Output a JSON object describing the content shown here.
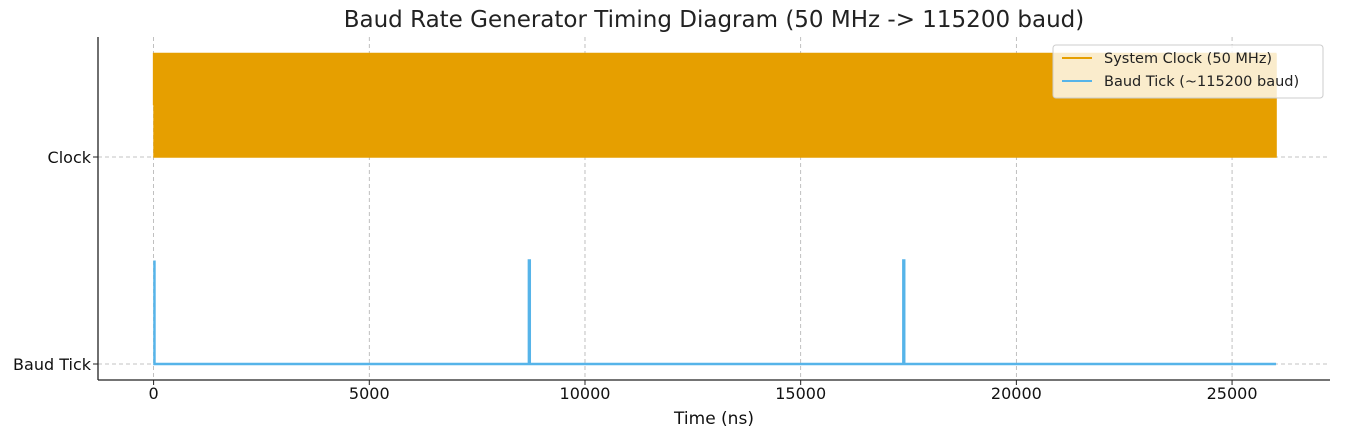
{
  "chart_data": {
    "type": "line",
    "title": "Baud Rate Generator Timing Diagram (50 MHz -> 115200 baud)",
    "xlabel": "Time (ns)",
    "ylabel": "",
    "xlim": [
      -1300,
      27300
    ],
    "xticks": [
      0,
      5000,
      10000,
      15000,
      20000,
      25000
    ],
    "yticks": [
      {
        "label": "Clock",
        "level": 2
      },
      {
        "label": "Baud Tick",
        "level": 0
      }
    ],
    "grid": true,
    "legend_position": "top-right",
    "clock_period_ns": 20,
    "t_end_ns": 26020,
    "series": [
      {
        "name": "System Clock (50 MHz)",
        "color": "#E69F00",
        "kind": "square-wave",
        "low": 2,
        "high": 3
      },
      {
        "name": "Baud Tick (~115200 baud)",
        "color": "#56B4E9",
        "kind": "pulse-train",
        "low": 0,
        "high": 1,
        "pulse_times_ns": [
          20,
          8700,
          17380
        ],
        "pulse_width_ns": 20
      }
    ]
  }
}
